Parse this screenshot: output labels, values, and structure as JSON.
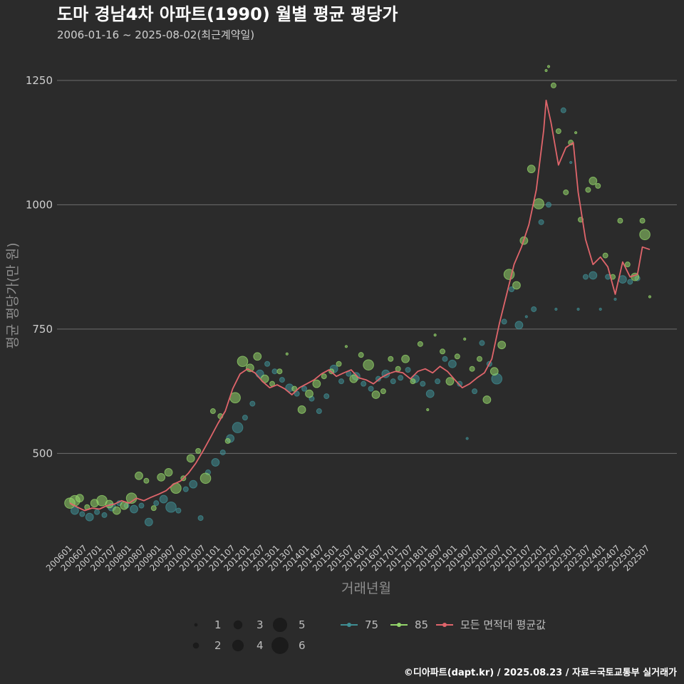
{
  "title": "도마 경남4차 아파트(1990) 월별 평균 평당가",
  "subtitle": "2006-01-16 ~ 2025-08-02(최근계약일)",
  "caption": "©디아파트(dapt.kr) / 2025.08.23 / 자료=국토교통부 실거래가",
  "colors": {
    "background": "#2b2b2b",
    "grid": "#6e6e6e",
    "s75": "#3f8e93",
    "s85": "#93d46a",
    "avg": "#e0656b",
    "text": "#d8d8d8",
    "muted": "#9a9a9a"
  },
  "chart_data": {
    "type": "scatter",
    "xlabel": "거래년월",
    "ylabel": "평균 평당가(만 원)",
    "ylim": [
      320,
      1290
    ],
    "yticks": [
      500,
      750,
      1000,
      1250
    ],
    "xtick_labels": [
      "200601",
      "200607",
      "200701",
      "200707",
      "200801",
      "200807",
      "200901",
      "200907",
      "201001",
      "201007",
      "201101",
      "201107",
      "201201",
      "201207",
      "201301",
      "201307",
      "201401",
      "201407",
      "201501",
      "201507",
      "201601",
      "201607",
      "201701",
      "201707",
      "201801",
      "201807",
      "201901",
      "201907",
      "202001",
      "202007",
      "202101",
      "202107",
      "202201",
      "202207",
      "202301",
      "202307",
      "202401",
      "202407",
      "202501",
      "202507"
    ],
    "x_start": "2006-01",
    "x_end": "2025-08",
    "size_legend": {
      "title": "",
      "values": [
        1,
        2,
        3,
        4,
        5,
        6
      ]
    },
    "legend": [
      {
        "key": "s75",
        "label": "75"
      },
      {
        "key": "s85",
        "label": "85"
      },
      {
        "key": "avg",
        "label": "모든 면적대 평균값"
      }
    ],
    "series": [
      {
        "name": "모든 면적대 평균값",
        "type": "line",
        "points": [
          [
            "2006-01",
            400
          ],
          [
            "2006-04",
            392
          ],
          [
            "2006-07",
            385
          ],
          [
            "2006-10",
            390
          ],
          [
            "2007-01",
            388
          ],
          [
            "2007-04",
            395
          ],
          [
            "2007-07",
            398
          ],
          [
            "2007-10",
            405
          ],
          [
            "2008-01",
            400
          ],
          [
            "2008-04",
            410
          ],
          [
            "2008-07",
            405
          ],
          [
            "2008-10",
            412
          ],
          [
            "2009-01",
            418
          ],
          [
            "2009-04",
            425
          ],
          [
            "2009-07",
            438
          ],
          [
            "2009-10",
            445
          ],
          [
            "2010-01",
            460
          ],
          [
            "2010-04",
            480
          ],
          [
            "2010-07",
            505
          ],
          [
            "2010-10",
            532
          ],
          [
            "2011-01",
            560
          ],
          [
            "2011-04",
            585
          ],
          [
            "2011-07",
            630
          ],
          [
            "2011-10",
            660
          ],
          [
            "2012-01",
            670
          ],
          [
            "2012-04",
            662
          ],
          [
            "2012-07",
            645
          ],
          [
            "2012-10",
            632
          ],
          [
            "2013-01",
            638
          ],
          [
            "2013-04",
            630
          ],
          [
            "2013-07",
            618
          ],
          [
            "2013-10",
            632
          ],
          [
            "2014-01",
            640
          ],
          [
            "2014-04",
            648
          ],
          [
            "2014-07",
            660
          ],
          [
            "2014-10",
            668
          ],
          [
            "2015-01",
            655
          ],
          [
            "2015-04",
            662
          ],
          [
            "2015-07",
            668
          ],
          [
            "2015-10",
            652
          ],
          [
            "2016-01",
            648
          ],
          [
            "2016-04",
            640
          ],
          [
            "2016-07",
            652
          ],
          [
            "2016-10",
            660
          ],
          [
            "2017-01",
            665
          ],
          [
            "2017-04",
            662
          ],
          [
            "2017-07",
            650
          ],
          [
            "2017-10",
            665
          ],
          [
            "2018-01",
            670
          ],
          [
            "2018-04",
            662
          ],
          [
            "2018-07",
            675
          ],
          [
            "2018-10",
            665
          ],
          [
            "2019-01",
            648
          ],
          [
            "2019-04",
            632
          ],
          [
            "2019-07",
            640
          ],
          [
            "2019-10",
            652
          ],
          [
            "2020-01",
            662
          ],
          [
            "2020-04",
            690
          ],
          [
            "2020-07",
            760
          ],
          [
            "2020-10",
            820
          ],
          [
            "2021-01",
            880
          ],
          [
            "2021-04",
            915
          ],
          [
            "2021-07",
            960
          ],
          [
            "2021-10",
            1030
          ],
          [
            "2022-01",
            1150
          ],
          [
            "2022-02",
            1210
          ],
          [
            "2022-04",
            1165
          ],
          [
            "2022-07",
            1080
          ],
          [
            "2022-10",
            1115
          ],
          [
            "2023-01",
            1125
          ],
          [
            "2023-03",
            1025
          ],
          [
            "2023-06",
            930
          ],
          [
            "2023-09",
            880
          ],
          [
            "2023-12",
            895
          ],
          [
            "2024-03",
            875
          ],
          [
            "2024-06",
            820
          ],
          [
            "2024-09",
            885
          ],
          [
            "2024-12",
            855
          ],
          [
            "2025-03",
            860
          ],
          [
            "2025-05",
            915
          ],
          [
            "2025-08",
            910
          ]
        ]
      },
      {
        "name": "75",
        "type": "bubble",
        "points": [
          [
            "2006-03",
            385,
            3
          ],
          [
            "2006-06",
            378,
            2
          ],
          [
            "2006-09",
            372,
            3
          ],
          [
            "2006-12",
            382,
            2
          ],
          [
            "2007-03",
            376,
            2
          ],
          [
            "2007-06",
            392,
            3
          ],
          [
            "2007-09",
            400,
            2
          ],
          [
            "2007-12",
            395,
            2
          ],
          [
            "2008-03",
            388,
            3
          ],
          [
            "2008-06",
            395,
            2
          ],
          [
            "2008-09",
            362,
            3
          ],
          [
            "2008-12",
            400,
            2
          ],
          [
            "2009-03",
            408,
            3
          ],
          [
            "2009-06",
            392,
            4
          ],
          [
            "2009-09",
            385,
            2
          ],
          [
            "2009-12",
            428,
            2
          ],
          [
            "2010-03",
            438,
            3
          ],
          [
            "2010-06",
            370,
            2
          ],
          [
            "2010-09",
            462,
            2
          ],
          [
            "2010-12",
            482,
            3
          ],
          [
            "2011-03",
            502,
            2
          ],
          [
            "2011-06",
            530,
            3
          ],
          [
            "2011-09",
            552,
            4
          ],
          [
            "2011-12",
            572,
            2
          ],
          [
            "2012-03",
            600,
            2
          ],
          [
            "2012-06",
            660,
            3
          ],
          [
            "2012-09",
            680,
            2
          ],
          [
            "2012-12",
            665,
            2
          ],
          [
            "2013-03",
            648,
            2
          ],
          [
            "2013-06",
            632,
            3
          ],
          [
            "2013-09",
            620,
            2
          ],
          [
            "2013-12",
            630,
            2
          ],
          [
            "2014-03",
            610,
            2
          ],
          [
            "2014-06",
            585,
            2
          ],
          [
            "2014-09",
            615,
            2
          ],
          [
            "2014-12",
            670,
            3
          ],
          [
            "2015-03",
            645,
            2
          ],
          [
            "2015-06",
            660,
            2
          ],
          [
            "2015-09",
            655,
            3
          ],
          [
            "2015-12",
            640,
            2
          ],
          [
            "2016-03",
            630,
            2
          ],
          [
            "2016-06",
            650,
            2
          ],
          [
            "2016-09",
            660,
            3
          ],
          [
            "2016-12",
            645,
            2
          ],
          [
            "2017-03",
            652,
            2
          ],
          [
            "2017-06",
            668,
            2
          ],
          [
            "2017-09",
            650,
            3
          ],
          [
            "2017-12",
            640,
            2
          ],
          [
            "2018-03",
            620,
            3
          ],
          [
            "2018-06",
            645,
            2
          ],
          [
            "2018-09",
            690,
            2
          ],
          [
            "2018-12",
            680,
            3
          ],
          [
            "2019-03",
            640,
            2
          ],
          [
            "2019-06",
            530,
            1
          ],
          [
            "2019-09",
            625,
            2
          ],
          [
            "2019-12",
            722,
            2
          ],
          [
            "2020-03",
            680,
            2
          ],
          [
            "2020-06",
            650,
            4
          ],
          [
            "2020-09",
            765,
            2
          ],
          [
            "2020-12",
            830,
            2
          ],
          [
            "2021-03",
            758,
            3
          ],
          [
            "2021-06",
            775,
            1
          ],
          [
            "2021-09",
            790,
            2
          ],
          [
            "2021-12",
            965,
            2
          ],
          [
            "2022-03",
            1000,
            2
          ],
          [
            "2022-06",
            790,
            1
          ],
          [
            "2022-09",
            1190,
            2
          ],
          [
            "2022-12",
            1085,
            1
          ],
          [
            "2023-03",
            790,
            1
          ],
          [
            "2023-06",
            855,
            2
          ],
          [
            "2023-09",
            858,
            3
          ],
          [
            "2023-12",
            790,
            1
          ],
          [
            "2024-03",
            855,
            2
          ],
          [
            "2024-06",
            810,
            1
          ],
          [
            "2024-09",
            850,
            3
          ],
          [
            "2024-12",
            845,
            2
          ],
          [
            "2025-03",
            852,
            2
          ]
        ]
      },
      {
        "name": "85",
        "type": "bubble",
        "points": [
          [
            "2006-01",
            400,
            4
          ],
          [
            "2006-03",
            405,
            4
          ],
          [
            "2006-05",
            410,
            3
          ],
          [
            "2006-08",
            392,
            2
          ],
          [
            "2006-11",
            400,
            3
          ],
          [
            "2007-02",
            405,
            4
          ],
          [
            "2007-05",
            398,
            3
          ],
          [
            "2007-08",
            385,
            3
          ],
          [
            "2007-11",
            395,
            3
          ],
          [
            "2008-02",
            410,
            4
          ],
          [
            "2008-05",
            455,
            3
          ],
          [
            "2008-08",
            445,
            2
          ],
          [
            "2008-11",
            390,
            2
          ],
          [
            "2009-02",
            452,
            3
          ],
          [
            "2009-05",
            462,
            3
          ],
          [
            "2009-08",
            430,
            4
          ],
          [
            "2009-11",
            450,
            2
          ],
          [
            "2010-02",
            490,
            3
          ],
          [
            "2010-05",
            505,
            2
          ],
          [
            "2010-08",
            450,
            4
          ],
          [
            "2010-11",
            585,
            2
          ],
          [
            "2011-02",
            575,
            2
          ],
          [
            "2011-05",
            525,
            2
          ],
          [
            "2011-08",
            612,
            4
          ],
          [
            "2011-11",
            685,
            4
          ],
          [
            "2012-02",
            672,
            3
          ],
          [
            "2012-05",
            695,
            3
          ],
          [
            "2012-08",
            650,
            3
          ],
          [
            "2012-11",
            640,
            2
          ],
          [
            "2013-02",
            665,
            2
          ],
          [
            "2013-05",
            700,
            1
          ],
          [
            "2013-08",
            630,
            2
          ],
          [
            "2013-11",
            588,
            3
          ],
          [
            "2014-02",
            620,
            3
          ],
          [
            "2014-05",
            640,
            3
          ],
          [
            "2014-08",
            655,
            2
          ],
          [
            "2014-11",
            665,
            2
          ],
          [
            "2015-02",
            680,
            2
          ],
          [
            "2015-05",
            715,
            1
          ],
          [
            "2015-08",
            650,
            3
          ],
          [
            "2015-11",
            698,
            2
          ],
          [
            "2016-02",
            678,
            4
          ],
          [
            "2016-05",
            618,
            3
          ],
          [
            "2016-08",
            625,
            2
          ],
          [
            "2016-11",
            690,
            2
          ],
          [
            "2017-02",
            670,
            2
          ],
          [
            "2017-05",
            690,
            3
          ],
          [
            "2017-08",
            645,
            2
          ],
          [
            "2017-11",
            720,
            2
          ],
          [
            "2018-02",
            588,
            1
          ],
          [
            "2018-05",
            738,
            1
          ],
          [
            "2018-08",
            705,
            2
          ],
          [
            "2018-11",
            645,
            3
          ],
          [
            "2019-02",
            695,
            2
          ],
          [
            "2019-05",
            730,
            1
          ],
          [
            "2019-08",
            670,
            2
          ],
          [
            "2019-11",
            690,
            2
          ],
          [
            "2020-02",
            608,
            3
          ],
          [
            "2020-05",
            665,
            3
          ],
          [
            "2020-08",
            718,
            3
          ],
          [
            "2020-11",
            860,
            4
          ],
          [
            "2021-02",
            838,
            3
          ],
          [
            "2021-05",
            928,
            3
          ],
          [
            "2021-08",
            1072,
            3
          ],
          [
            "2021-11",
            1002,
            4
          ],
          [
            "2022-02",
            1270,
            1
          ],
          [
            "2022-03",
            1278,
            1
          ],
          [
            "2022-05",
            1240,
            2
          ],
          [
            "2022-07",
            1148,
            2
          ],
          [
            "2022-10",
            1025,
            2
          ],
          [
            "2022-12",
            1125,
            2
          ],
          [
            "2023-02",
            1145,
            1
          ],
          [
            "2023-04",
            970,
            2
          ],
          [
            "2023-07",
            1030,
            2
          ],
          [
            "2023-09",
            1048,
            3
          ],
          [
            "2023-11",
            1038,
            2
          ],
          [
            "2024-02",
            898,
            2
          ],
          [
            "2024-05",
            855,
            2
          ],
          [
            "2024-08",
            968,
            2
          ],
          [
            "2024-11",
            880,
            2
          ],
          [
            "2025-02",
            855,
            3
          ],
          [
            "2025-05",
            968,
            2
          ],
          [
            "2025-06",
            940,
            4
          ],
          [
            "2025-08",
            815,
            1
          ]
        ]
      }
    ]
  }
}
